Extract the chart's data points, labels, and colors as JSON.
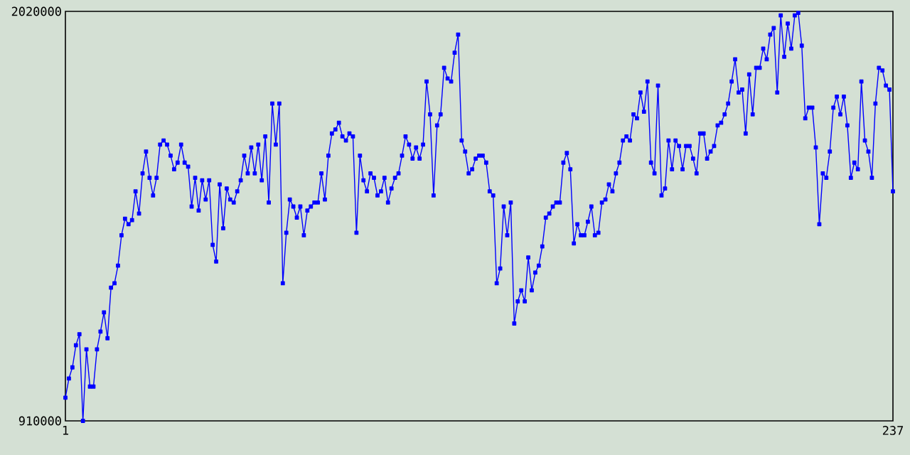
{
  "chart_data": {
    "type": "line",
    "x": [
      1,
      2,
      3,
      4,
      5,
      6,
      7,
      8,
      9,
      10,
      11,
      12,
      13,
      14,
      15,
      16,
      17,
      18,
      19,
      20,
      21,
      22,
      23,
      24,
      25,
      26,
      27,
      28,
      29,
      30,
      31,
      32,
      33,
      34,
      35,
      36,
      37,
      38,
      39,
      40,
      41,
      42,
      43,
      44,
      45,
      46,
      47,
      48,
      49,
      50,
      51,
      52,
      53,
      54,
      55,
      56,
      57,
      58,
      59,
      60,
      61,
      62,
      63,
      64,
      65,
      66,
      67,
      68,
      69,
      70,
      71,
      72,
      73,
      74,
      75,
      76,
      77,
      78,
      79,
      80,
      81,
      82,
      83,
      84,
      85,
      86,
      87,
      88,
      89,
      90,
      91,
      92,
      93,
      94,
      95,
      96,
      97,
      98,
      99,
      100,
      101,
      102,
      103,
      104,
      105,
      106,
      107,
      108,
      109,
      110,
      111,
      112,
      113,
      114,
      115,
      116,
      117,
      118,
      119,
      120,
      121,
      122,
      123,
      124,
      125,
      126,
      127,
      128,
      129,
      130,
      131,
      132,
      133,
      134,
      135,
      136,
      137,
      138,
      139,
      140,
      141,
      142,
      143,
      144,
      145,
      146,
      147,
      148,
      149,
      150,
      151,
      152,
      153,
      154,
      155,
      156,
      157,
      158,
      159,
      160,
      161,
      162,
      163,
      164,
      165,
      166,
      167,
      168,
      169,
      170,
      171,
      172,
      173,
      174,
      175,
      176,
      177,
      178,
      179,
      180,
      181,
      182,
      183,
      184,
      185,
      186,
      187,
      188,
      189,
      190,
      191,
      192,
      193,
      194,
      195,
      196,
      197,
      198,
      199,
      200,
      201,
      202,
      203,
      204,
      205,
      206,
      207,
      208,
      209,
      210,
      211,
      212,
      213,
      214,
      215,
      216,
      217,
      218,
      219,
      220,
      221,
      222,
      223,
      224,
      225,
      226,
      227,
      228,
      229,
      230,
      231,
      232,
      233,
      234,
      235,
      236,
      237
    ],
    "values": [
      973000,
      1025000,
      1055000,
      1115000,
      1145000,
      910000,
      1104000,
      1003000,
      1003000,
      1104000,
      1152000,
      1204000,
      1134000,
      1271000,
      1283000,
      1331000,
      1413000,
      1458000,
      1443000,
      1454000,
      1532000,
      1472000,
      1581000,
      1640000,
      1569000,
      1521000,
      1569000,
      1659000,
      1670000,
      1659000,
      1629000,
      1592000,
      1610000,
      1659000,
      1610000,
      1599000,
      1491000,
      1569000,
      1480000,
      1562000,
      1510000,
      1562000,
      1387000,
      1342000,
      1551000,
      1432000,
      1540000,
      1510000,
      1502000,
      1532000,
      1562000,
      1629000,
      1581000,
      1651000,
      1581000,
      1659000,
      1562000,
      1681000,
      1502000,
      1770000,
      1659000,
      1770000,
      1283000,
      1420000,
      1510000,
      1491000,
      1461000,
      1491000,
      1413000,
      1480000,
      1491000,
      1502000,
      1502000,
      1581000,
      1510000,
      1629000,
      1689000,
      1700000,
      1718000,
      1681000,
      1670000,
      1689000,
      1681000,
      1420000,
      1629000,
      1562000,
      1532000,
      1581000,
      1569000,
      1521000,
      1532000,
      1569000,
      1502000,
      1540000,
      1569000,
      1581000,
      1629000,
      1681000,
      1659000,
      1621000,
      1651000,
      1621000,
      1659000,
      1830000,
      1741000,
      1521000,
      1711000,
      1741000,
      1867000,
      1838000,
      1830000,
      1908000,
      1957000,
      1670000,
      1640000,
      1581000,
      1592000,
      1621000,
      1629000,
      1629000,
      1610000,
      1532000,
      1521000,
      1283000,
      1323000,
      1491000,
      1413000,
      1502000,
      1174000,
      1234000,
      1264000,
      1234000,
      1353000,
      1264000,
      1312000,
      1331000,
      1383000,
      1461000,
      1472000,
      1491000,
      1502000,
      1502000,
      1610000,
      1636000,
      1592000,
      1391000,
      1443000,
      1413000,
      1413000,
      1450000,
      1491000,
      1413000,
      1420000,
      1502000,
      1510000,
      1551000,
      1532000,
      1581000,
      1610000,
      1670000,
      1681000,
      1670000,
      1741000,
      1730000,
      1800000,
      1748000,
      1830000,
      1610000,
      1581000,
      1819000,
      1521000,
      1540000,
      1670000,
      1592000,
      1670000,
      1655000,
      1592000,
      1655000,
      1655000,
      1621000,
      1581000,
      1689000,
      1689000,
      1621000,
      1640000,
      1655000,
      1711000,
      1718000,
      1741000,
      1770000,
      1830000,
      1890000,
      1800000,
      1808000,
      1689000,
      1849000,
      1741000,
      1867000,
      1867000,
      1919000,
      1890000,
      1957000,
      1975000,
      1800000,
      2009000,
      1897000,
      1987000,
      1919000,
      2009000,
      2016000,
      1927000,
      1730000,
      1759000,
      1759000,
      1651000,
      1443000,
      1581000,
      1569000,
      1640000,
      1759000,
      1789000,
      1741000,
      1789000,
      1711000,
      1569000,
      1610000,
      1592000,
      1830000,
      1670000,
      1640000,
      1569000,
      1770000,
      1867000,
      1860000,
      1819000,
      1808000,
      1532000
    ],
    "color": "#0000ff",
    "xlim": [
      1,
      237
    ],
    "xticks": [
      1,
      237
    ],
    "ylim": [
      910000,
      2020000
    ],
    "yticks": [
      910000,
      2020000
    ],
    "marker": "square",
    "line_style": "solid"
  }
}
